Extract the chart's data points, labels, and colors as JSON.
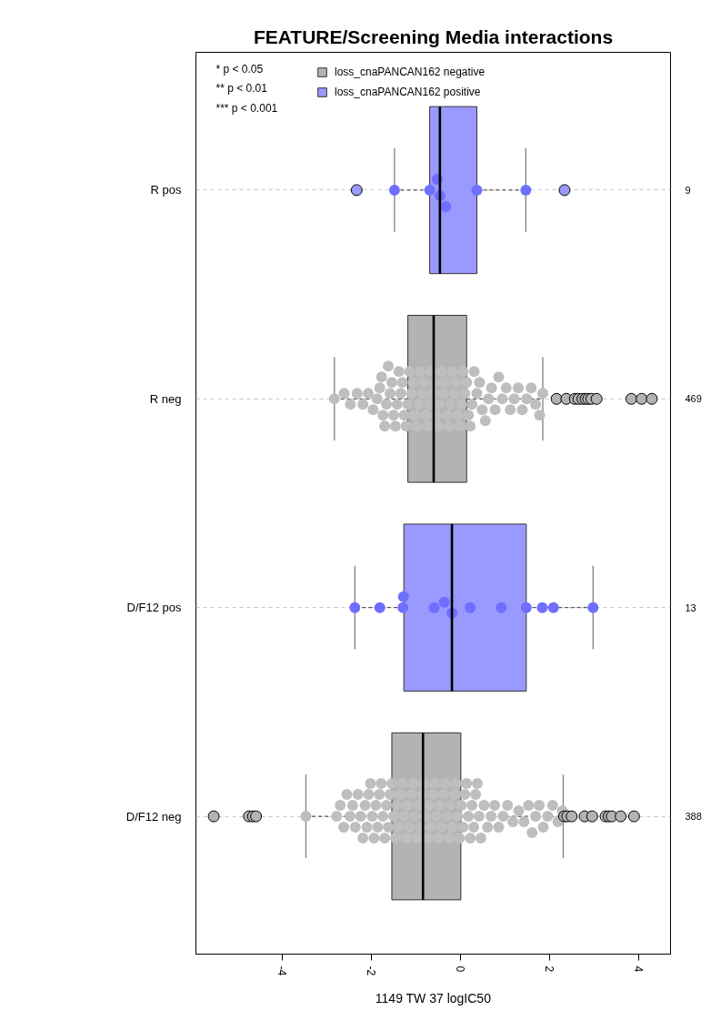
{
  "chart_data": {
    "type": "box",
    "orientation": "horizontal",
    "title": "FEATURE/Screening Media interactions",
    "xlabel": "1149 TW 37 logIC50",
    "categories": [
      "R pos",
      "R neg",
      "D/F12 pos",
      "D/F12 neg"
    ],
    "y2_categories": [
      "9",
      "469",
      "13",
      "388"
    ],
    "xlim": [
      -5.95,
      4.71
    ],
    "xticks": [
      -4,
      -2,
      0,
      2,
      4
    ],
    "grid": "y",
    "legend": "top left",
    "marker": "circle",
    "annotations": [
      "* p < 0.05",
      "** p < 0.01",
      "*** p < 0.001"
    ],
    "series": [
      {
        "name": "loss_cnaPANCAN162 negative",
        "color": "#b3b3b3",
        "boxes": [
          null,
          {
            "low": -2.84,
            "q1": -1.19,
            "median": -0.61,
            "q3": 0.13,
            "high": 1.84,
            "outliers": [
              2.15,
              2.37,
              2.56,
              2.64,
              2.73,
              2.8,
              2.86,
              2.93,
              3.05,
              3.83,
              4.06,
              4.29
            ]
          },
          null,
          {
            "low": -3.48,
            "q1": -1.55,
            "median": -0.85,
            "q3": 0.0,
            "high": 2.3,
            "outliers": [
              -5.55,
              -4.76,
              -4.67,
              -4.6,
              2.32,
              2.39,
              2.49,
              2.78,
              2.95,
              3.25,
              3.32,
              3.39,
              3.59,
              3.89
            ]
          }
        ]
      },
      {
        "name": "loss_cnaPANCAN162 positive",
        "color": "#9999ff",
        "boxes": [
          {
            "low": -1.49,
            "q1": -0.7,
            "median": -0.47,
            "q3": 0.36,
            "high": 1.46,
            "outliers": [
              -2.34,
              2.33
            ]
          },
          null,
          {
            "low": -2.38,
            "q1": -1.28,
            "median": -0.2,
            "q3": 1.47,
            "high": 2.97
          },
          null
        ]
      },
      {
        "type": "scatter",
        "color": "#bebebe",
        "x": [
          "R neg",
          "R neg",
          "R neg",
          "R neg",
          "R neg",
          "R neg",
          "R neg",
          "R neg",
          "R neg",
          "R neg",
          "R neg",
          "R neg",
          "R neg",
          "R neg",
          "R neg",
          "R neg",
          "R neg",
          "R neg",
          "R neg",
          "R neg",
          "R neg",
          "R neg",
          "R neg",
          "R neg",
          "R neg",
          "R neg",
          "R neg",
          "R neg",
          "R neg",
          "R neg",
          "R neg",
          "R neg",
          "R neg",
          "R neg",
          "R neg",
          "R neg",
          "R neg",
          "R neg",
          "R neg",
          "R neg",
          "R neg",
          "R neg",
          "R neg",
          "R neg",
          "R neg",
          "R neg",
          "R neg",
          "R neg",
          "R neg",
          "R neg",
          "R neg",
          "R neg",
          "R neg",
          "R neg",
          "R neg",
          "R neg",
          "R neg",
          "R neg",
          "R neg",
          "R neg",
          "R neg",
          "R neg",
          "R neg",
          "R neg",
          "R neg",
          "R neg",
          "R neg",
          "R neg",
          "R neg",
          "R neg",
          "R neg",
          "R neg",
          "R neg",
          "R neg",
          "R neg",
          "R neg",
          "R neg",
          "R neg",
          "R neg",
          "R neg",
          "R neg"
        ],
        "values": [
          -2.84,
          -2.62,
          -2.48,
          -2.33,
          -2.2,
          -2.08,
          -1.97,
          -1.88,
          -1.82,
          -1.78,
          -1.75,
          -1.71,
          -1.67,
          -1.63,
          -1.59,
          -1.55,
          -1.51,
          -1.47,
          -1.43,
          -1.39,
          -1.35,
          -1.31,
          -1.27,
          -1.23,
          -1.19,
          -1.15,
          -1.11,
          -1.07,
          -1.03,
          -0.99,
          -0.95,
          -0.91,
          -0.87,
          -0.83,
          -0.79,
          -0.75,
          -0.71,
          -0.67,
          -0.63,
          -0.59,
          -0.55,
          -0.51,
          -0.47,
          -0.43,
          -0.39,
          -0.35,
          -0.31,
          -0.27,
          -0.23,
          -0.19,
          -0.15,
          -0.11,
          -0.07,
          -0.03,
          0.01,
          0.05,
          0.09,
          0.13,
          0.17,
          0.21,
          0.25,
          0.3,
          0.36,
          0.42,
          0.48,
          0.55,
          0.62,
          0.69,
          0.77,
          0.85,
          0.93,
          1.02,
          1.11,
          1.2,
          1.29,
          1.38,
          1.48,
          1.58,
          1.68,
          1.77,
          1.84
        ]
      },
      {
        "type": "scatter",
        "color": "#bebebe",
        "x": [
          "D/F12 neg",
          "D/F12 neg",
          "D/F12 neg",
          "D/F12 neg",
          "D/F12 neg",
          "D/F12 neg",
          "D/F12 neg",
          "D/F12 neg",
          "D/F12 neg",
          "D/F12 neg",
          "D/F12 neg",
          "D/F12 neg",
          "D/F12 neg",
          "D/F12 neg",
          "D/F12 neg",
          "D/F12 neg",
          "D/F12 neg",
          "D/F12 neg",
          "D/F12 neg",
          "D/F12 neg",
          "D/F12 neg",
          "D/F12 neg",
          "D/F12 neg",
          "D/F12 neg",
          "D/F12 neg",
          "D/F12 neg",
          "D/F12 neg",
          "D/F12 neg",
          "D/F12 neg",
          "D/F12 neg",
          "D/F12 neg",
          "D/F12 neg",
          "D/F12 neg",
          "D/F12 neg",
          "D/F12 neg",
          "D/F12 neg",
          "D/F12 neg",
          "D/F12 neg",
          "D/F12 neg",
          "D/F12 neg",
          "D/F12 neg",
          "D/F12 neg",
          "D/F12 neg",
          "D/F12 neg",
          "D/F12 neg",
          "D/F12 neg",
          "D/F12 neg",
          "D/F12 neg",
          "D/F12 neg",
          "D/F12 neg",
          "D/F12 neg",
          "D/F12 neg",
          "D/F12 neg",
          "D/F12 neg",
          "D/F12 neg",
          "D/F12 neg",
          "D/F12 neg",
          "D/F12 neg",
          "D/F12 neg",
          "D/F12 neg",
          "D/F12 neg",
          "D/F12 neg",
          "D/F12 neg",
          "D/F12 neg",
          "D/F12 neg",
          "D/F12 neg",
          "D/F12 neg",
          "D/F12 neg",
          "D/F12 neg",
          "D/F12 neg",
          "D/F12 neg",
          "D/F12 neg",
          "D/F12 neg",
          "D/F12 neg",
          "D/F12 neg",
          "D/F12 neg",
          "D/F12 neg",
          "D/F12 neg",
          "D/F12 neg",
          "D/F12 neg",
          "D/F12 neg",
          "D/F12 neg",
          "D/F12 neg",
          "D/F12 neg",
          "D/F12 neg",
          "D/F12 neg",
          "D/F12 neg",
          "D/F12 neg",
          "D/F12 neg",
          "D/F12 neg",
          "D/F12 neg",
          "D/F12 neg",
          "D/F12 neg",
          "D/F12 neg",
          "D/F12 neg",
          "D/F12 neg"
        ],
        "values": [
          -3.48,
          -2.79,
          -2.71,
          -2.63,
          -2.56,
          -2.49,
          -2.43,
          -2.37,
          -2.31,
          -2.25,
          -2.2,
          -2.15,
          -2.11,
          -2.07,
          -2.03,
          -1.99,
          -1.95,
          -1.91,
          -1.87,
          -1.83,
          -1.79,
          -1.75,
          -1.71,
          -1.67,
          -1.63,
          -1.59,
          -1.55,
          -1.51,
          -1.47,
          -1.43,
          -1.39,
          -1.35,
          -1.31,
          -1.27,
          -1.23,
          -1.19,
          -1.15,
          -1.11,
          -1.07,
          -1.03,
          -0.99,
          -0.95,
          -0.91,
          -0.87,
          -0.83,
          -0.79,
          -0.75,
          -0.71,
          -0.67,
          -0.63,
          -0.59,
          -0.55,
          -0.51,
          -0.47,
          -0.43,
          -0.39,
          -0.35,
          -0.31,
          -0.27,
          -0.23,
          -0.19,
          -0.15,
          -0.11,
          -0.07,
          -0.03,
          0.01,
          0.05,
          0.09,
          0.13,
          0.17,
          0.21,
          0.25,
          0.29,
          0.33,
          0.37,
          0.41,
          0.45,
          0.52,
          0.6,
          0.68,
          0.76,
          0.85,
          0.95,
          1.05,
          1.17,
          1.3,
          1.42,
          1.52,
          1.6,
          1.68,
          1.76,
          1.85,
          1.95,
          2.06,
          2.18,
          2.28
        ]
      },
      {
        "type": "scatter",
        "color": "#6e6eff",
        "x": [
          "R pos",
          "R pos",
          "R pos",
          "R pos",
          "R pos",
          "R pos",
          "R pos",
          "D/F12 pos",
          "D/F12 pos",
          "D/F12 pos",
          "D/F12 pos",
          "D/F12 pos",
          "D/F12 pos",
          "D/F12 pos",
          "D/F12 pos",
          "D/F12 pos",
          "D/F12 pos",
          "D/F12 pos",
          "D/F12 pos",
          "D/F12 pos"
        ],
        "values": [
          -1.49,
          -0.7,
          -0.53,
          -0.47,
          -0.34,
          0.36,
          1.46,
          -2.38,
          -1.82,
          -1.3,
          -1.29,
          -0.6,
          -0.37,
          -0.2,
          0.21,
          0.91,
          1.47,
          1.83,
          2.08,
          2.97
        ]
      }
    ]
  }
}
